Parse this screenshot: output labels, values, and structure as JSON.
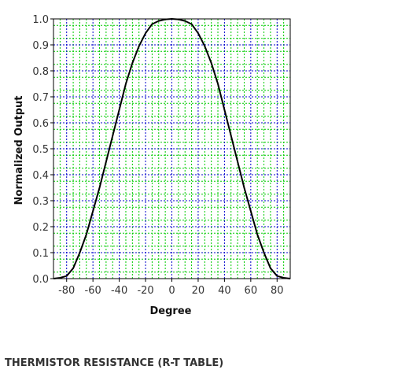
{
  "chart_data": {
    "type": "line",
    "title": "",
    "xlabel": "Degree",
    "ylabel": "Normalized Output",
    "xlim": [
      -90,
      90
    ],
    "ylim": [
      0,
      1.0
    ],
    "x_ticks": [
      -80,
      -60,
      -40,
      -20,
      0,
      20,
      40,
      60,
      80
    ],
    "x_tick_labels": [
      "-80",
      "-60",
      "-40",
      "-20",
      "0",
      "20",
      "40",
      "60",
      "80"
    ],
    "y_ticks": [
      0,
      0.1,
      0.2,
      0.3,
      0.4,
      0.5,
      0.6,
      0.7,
      0.8,
      0.9,
      1.0
    ],
    "y_tick_labels": [
      "0.0",
      "0.1",
      "0.2",
      "0.3",
      "0.4",
      "0.5",
      "0.6",
      "0.7",
      "0.8",
      "0.9",
      "1.0"
    ],
    "grid": true,
    "colors": {
      "major_grid": "#0000cc",
      "minor_grid": "#00cc00",
      "line": "#000000",
      "frame": "#000000"
    },
    "series": [
      {
        "x": [
          -90,
          -85,
          -80,
          -75,
          -70,
          -65,
          -60,
          -55,
          -50,
          -45,
          -40,
          -35,
          -30,
          -25,
          -20,
          -15,
          -10,
          -5,
          0,
          5,
          10,
          15,
          20,
          25,
          30,
          35,
          40,
          45,
          50,
          55,
          60,
          65,
          70,
          75,
          80,
          85,
          90
        ],
        "values": [
          0.0,
          0.003,
          0.01,
          0.04,
          0.1,
          0.17,
          0.26,
          0.35,
          0.45,
          0.55,
          0.65,
          0.75,
          0.83,
          0.895,
          0.945,
          0.98,
          0.992,
          0.998,
          1.0,
          0.998,
          0.992,
          0.98,
          0.945,
          0.895,
          0.83,
          0.75,
          0.65,
          0.55,
          0.45,
          0.35,
          0.26,
          0.17,
          0.1,
          0.04,
          0.01,
          0.003,
          0.0
        ]
      }
    ]
  },
  "section": {
    "heading": "THERMISTOR RESISTANCE (R-T TABLE)"
  }
}
